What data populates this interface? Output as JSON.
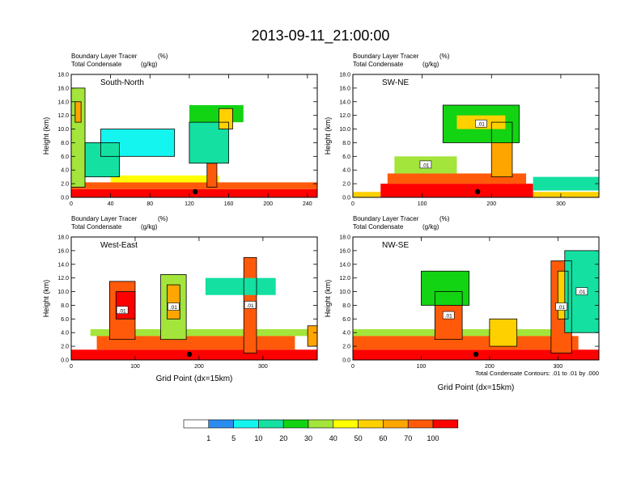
{
  "title": "2013-09-11_21:00:00",
  "panel_header": {
    "line1_label": "Boundary Layer Tracer",
    "line1_units": "(%)",
    "line2_label": "Total Condensate",
    "line2_units": "(g/kg)"
  },
  "contour_note": "Total Condensate Contours: .01 to .01 by .000",
  "colors": {
    "bins": [
      "#ffffff",
      "#2a8cf0",
      "#15f5f0",
      "#14e0a2",
      "#13d413",
      "#a3e53a",
      "#ffff00",
      "#ffd000",
      "#ffa500",
      "#ff5a0a",
      "#ff0000"
    ],
    "contour": "#000000",
    "frame": "#000000"
  },
  "chart_data": [
    {
      "type": "heatmap",
      "name": "South-North",
      "xlim": [
        0,
        250
      ],
      "xticks": [
        0,
        40,
        80,
        120,
        160,
        200,
        240
      ],
      "ylim": [
        0,
        18
      ],
      "yticks": [
        "0.0",
        "2.0",
        "4.0",
        "6.0",
        "8.0",
        "10.0",
        "12.0",
        "14.0",
        "16.0",
        "18.0"
      ],
      "ylabel": "Height (km)",
      "xlabel": "",
      "marker_x": 126,
      "contour_labels": [],
      "features": [
        {
          "x": 0,
          "w": 250,
          "y0": 0,
          "y1": 1.2,
          "v": 100
        },
        {
          "x": 0,
          "w": 250,
          "y0": 1.2,
          "y1": 2.2,
          "v": 70
        },
        {
          "x": 40,
          "w": 110,
          "y0": 2.2,
          "y1": 3.2,
          "v": 40
        },
        {
          "x": 0,
          "w": 14,
          "y0": 1.5,
          "y1": 16,
          "v": 30
        },
        {
          "x": 4,
          "w": 6,
          "y0": 11,
          "y1": 14,
          "v": 60
        },
        {
          "x": 138,
          "w": 10,
          "y0": 1.5,
          "y1": 5,
          "v": 70
        },
        {
          "x": 120,
          "w": 40,
          "y0": 5,
          "y1": 11,
          "v": 10
        },
        {
          "x": 120,
          "w": 55,
          "y0": 11,
          "y1": 13.5,
          "v": 20
        },
        {
          "x": 150,
          "w": 14,
          "y0": 10,
          "y1": 13,
          "v": 50
        },
        {
          "x": 30,
          "w": 75,
          "y0": 6,
          "y1": 10,
          "v": 5
        },
        {
          "x": 14,
          "w": 35,
          "y0": 3,
          "y1": 8,
          "v": 10
        }
      ]
    },
    {
      "type": "heatmap",
      "name": "SW-NE",
      "xlim": [
        0,
        355
      ],
      "xticks": [
        0,
        100,
        200,
        300
      ],
      "ylim": [
        0,
        18
      ],
      "yticks": [
        "0.0",
        "2.0",
        "4.0",
        "6.0",
        "8.0",
        "10.0",
        "12.0",
        "14.0",
        "16.0",
        "18.0"
      ],
      "ylabel": "Height (km)",
      "xlabel": "",
      "marker_x": 180,
      "contour_labels": [
        ".01",
        ".01"
      ],
      "features": [
        {
          "x": 0,
          "w": 355,
          "y0": 0,
          "y1": 0.8,
          "v": 50
        },
        {
          "x": 40,
          "w": 220,
          "y0": 0,
          "y1": 2.0,
          "v": 100
        },
        {
          "x": 50,
          "w": 200,
          "y0": 2.0,
          "y1": 3.5,
          "v": 70
        },
        {
          "x": 60,
          "w": 90,
          "y0": 3.5,
          "y1": 6,
          "v": 30
        },
        {
          "x": 200,
          "w": 30,
          "y0": 3,
          "y1": 11,
          "v": 60
        },
        {
          "x": 130,
          "w": 110,
          "y0": 8,
          "y1": 13.5,
          "v": 20
        },
        {
          "x": 150,
          "w": 70,
          "y0": 10,
          "y1": 12,
          "v": 50
        },
        {
          "x": 260,
          "w": 95,
          "y0": 1,
          "y1": 3,
          "v": 10
        }
      ]
    },
    {
      "type": "heatmap",
      "name": "West-East",
      "xlim": [
        0,
        385
      ],
      "xticks": [
        0,
        100,
        200,
        300
      ],
      "ylim": [
        0,
        18
      ],
      "yticks": [
        "0.0",
        "2.0",
        "4.0",
        "6.0",
        "8.0",
        "10.0",
        "12.0",
        "14.0",
        "16.0",
        "18.0"
      ],
      "ylabel": "Height (km)",
      "xlabel": "Grid Point (dx=15km)",
      "marker_x": 185,
      "contour_labels": [
        ".01",
        ".01",
        ".01"
      ],
      "features": [
        {
          "x": 0,
          "w": 385,
          "y0": 0,
          "y1": 1.5,
          "v": 100
        },
        {
          "x": 40,
          "w": 310,
          "y0": 1.5,
          "y1": 3.5,
          "v": 70
        },
        {
          "x": 30,
          "w": 340,
          "y0": 3.5,
          "y1": 4.5,
          "v": 30
        },
        {
          "x": 60,
          "w": 40,
          "y0": 3,
          "y1": 11.5,
          "v": 70
        },
        {
          "x": 70,
          "w": 30,
          "y0": 6,
          "y1": 10,
          "v": 100
        },
        {
          "x": 140,
          "w": 40,
          "y0": 3,
          "y1": 12.5,
          "v": 30
        },
        {
          "x": 150,
          "w": 20,
          "y0": 6,
          "y1": 11,
          "v": 60
        },
        {
          "x": 270,
          "w": 20,
          "y0": 1,
          "y1": 15,
          "v": 70
        },
        {
          "x": 210,
          "w": 110,
          "y0": 9.5,
          "y1": 12,
          "v": 10
        },
        {
          "x": 370,
          "w": 15,
          "y0": 2,
          "y1": 5,
          "v": 60
        }
      ]
    },
    {
      "type": "heatmap",
      "name": "NW-SE",
      "xlim": [
        0,
        360
      ],
      "xticks": [
        0,
        100,
        200,
        300
      ],
      "ylim": [
        0,
        18
      ],
      "yticks": [
        "0.0",
        "2.0",
        "4.0",
        "6.0",
        "8.0",
        "10.0",
        "12.0",
        "14.0",
        "16.0",
        "18.0"
      ],
      "ylabel": "Height (km)",
      "xlabel": "Grid Point (dx=15km)",
      "marker_x": 180,
      "contour_labels": [
        ".01",
        ".01",
        ".01"
      ],
      "features": [
        {
          "x": 0,
          "w": 360,
          "y0": 0,
          "y1": 1.5,
          "v": 100
        },
        {
          "x": 0,
          "w": 330,
          "y0": 1.5,
          "y1": 3.5,
          "v": 70
        },
        {
          "x": 0,
          "w": 290,
          "y0": 3.5,
          "y1": 4.5,
          "v": 30
        },
        {
          "x": 120,
          "w": 40,
          "y0": 3,
          "y1": 10,
          "v": 70
        },
        {
          "x": 100,
          "w": 70,
          "y0": 8,
          "y1": 13,
          "v": 20
        },
        {
          "x": 290,
          "w": 30,
          "y0": 1,
          "y1": 14.5,
          "v": 70
        },
        {
          "x": 300,
          "w": 15,
          "y0": 6,
          "y1": 13,
          "v": 50
        },
        {
          "x": 310,
          "w": 50,
          "y0": 4,
          "y1": 16,
          "v": 10
        },
        {
          "x": 200,
          "w": 40,
          "y0": 2,
          "y1": 6,
          "v": 50
        }
      ]
    }
  ],
  "legend": {
    "labels": [
      "1",
      "5",
      "10",
      "20",
      "30",
      "40",
      "50",
      "60",
      "70",
      "100"
    ]
  }
}
